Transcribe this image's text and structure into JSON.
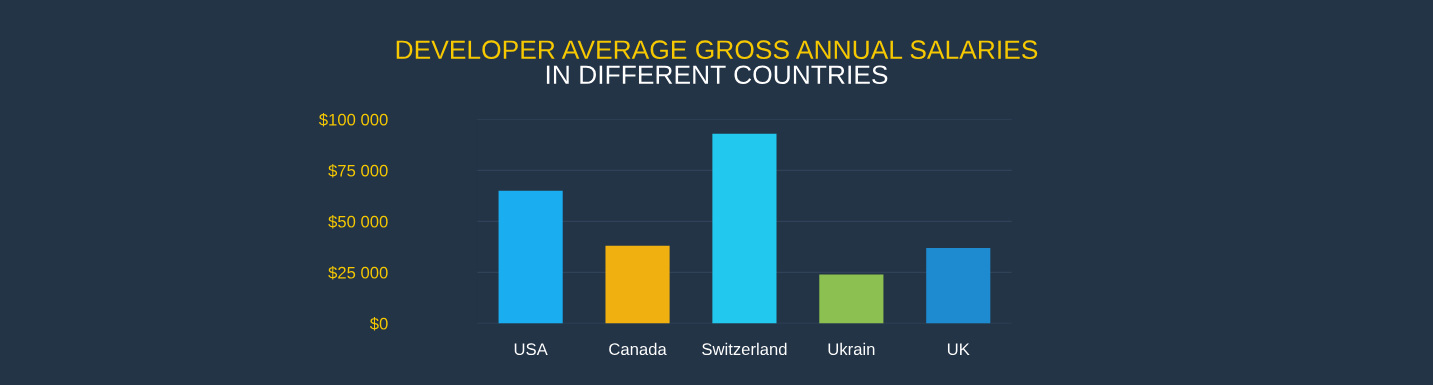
{
  "chart_data": {
    "type": "bar",
    "title": "DEVELOPER AVERAGE GROSS ANNUAL SALARIES",
    "subtitle": "IN DIFFERENT COUNTRIES",
    "categories": [
      "USA",
      "Canada",
      "Switzerland",
      "Ukrain",
      "UK"
    ],
    "values": [
      65000,
      38000,
      93000,
      24000,
      37000
    ],
    "colors": [
      "#1aaef0",
      "#f0b010",
      "#22c8ee",
      "#8cc050",
      "#1e8ad0"
    ],
    "ylim": [
      0,
      100000
    ],
    "yticks": [
      {
        "value": 0,
        "label": "$0"
      },
      {
        "value": 25000,
        "label": "$25 000"
      },
      {
        "value": 50000,
        "label": "$50 000"
      },
      {
        "value": 75000,
        "label": "$75 000"
      },
      {
        "value": 100000,
        "label": "$100 000"
      }
    ],
    "grid": "y"
  }
}
